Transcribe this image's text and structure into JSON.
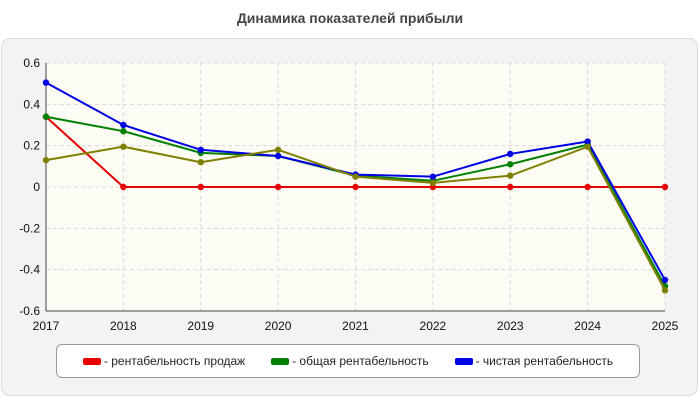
{
  "chart_data": {
    "type": "line",
    "title": "Динамика показателей прибыли",
    "x": [
      "2017",
      "2018",
      "2019",
      "2020",
      "2021",
      "2022",
      "2023",
      "2024",
      "2025"
    ],
    "ylim": [
      -0.6,
      0.6
    ],
    "yticks": [
      "0.6",
      "0.4",
      "0.2",
      "0",
      "-0.2",
      "-0.4",
      "-0.6"
    ],
    "grid": true,
    "legend_position": "bottom",
    "series": [
      {
        "name": "- рентабельность продаж",
        "color": "#e60000",
        "values": [
          0.34,
          0.0,
          0.0,
          0.0,
          0.0,
          0.0,
          0.0,
          0.0,
          0.0
        ]
      },
      {
        "name": "- общая рентабельность",
        "color": "#008000",
        "values": [
          0.34,
          0.27,
          0.165,
          0.15,
          0.055,
          0.03,
          0.11,
          0.205,
          -0.48
        ]
      },
      {
        "name": "- чистая рентабельность",
        "color": "#0000e6",
        "values": [
          0.505,
          0.3,
          0.18,
          0.15,
          0.06,
          0.05,
          0.16,
          0.22,
          -0.45
        ]
      },
      {
        "name": "",
        "color": "#808000",
        "values": [
          0.13,
          0.195,
          0.12,
          0.18,
          0.05,
          0.02,
          0.055,
          0.195,
          -0.5
        ]
      }
    ]
  }
}
